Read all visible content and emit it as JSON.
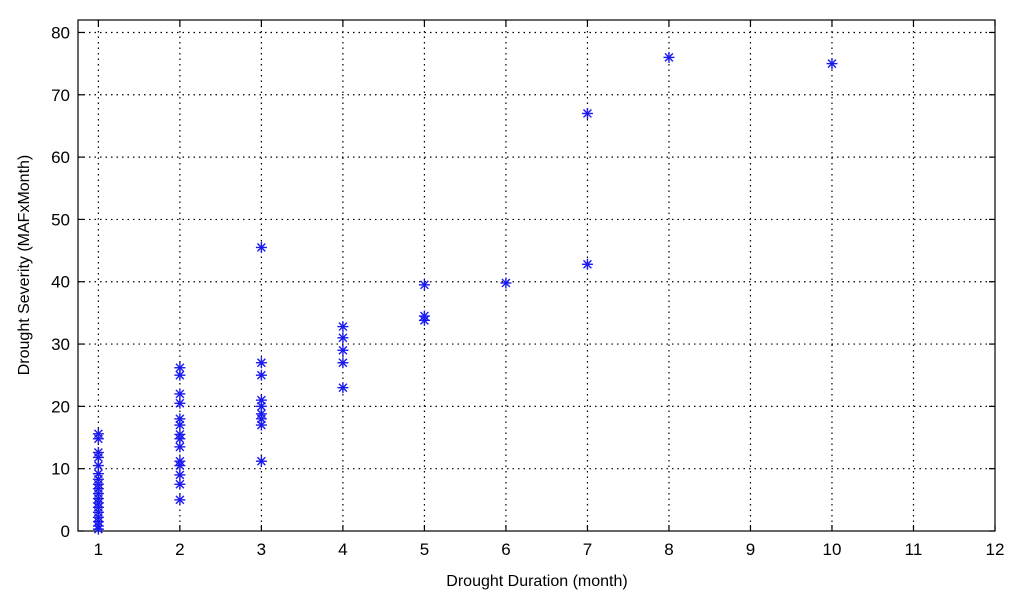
{
  "chart_data": {
    "type": "scatter",
    "title": "",
    "xlabel": "Drought Duration  (month)",
    "ylabel": "Drought Severity  (MAFxMonth)",
    "xlim": [
      0.75,
      12
    ],
    "ylim": [
      0,
      82
    ],
    "xticks": [
      1,
      2,
      3,
      4,
      5,
      6,
      7,
      8,
      9,
      10,
      11,
      12
    ],
    "yticks": [
      0,
      10,
      20,
      30,
      40,
      50,
      60,
      70,
      80
    ],
    "grid": true,
    "marker": "asterisk",
    "series_color": "#1a1aee",
    "points": [
      [
        1,
        0.3
      ],
      [
        1,
        0.8
      ],
      [
        1,
        1.5
      ],
      [
        1,
        2.2
      ],
      [
        1,
        3.0
      ],
      [
        1,
        3.8
      ],
      [
        1,
        4.5
      ],
      [
        1,
        5.2
      ],
      [
        1,
        6.0
      ],
      [
        1,
        6.8
      ],
      [
        1,
        7.5
      ],
      [
        1,
        8.3
      ],
      [
        1,
        9.2
      ],
      [
        1,
        10.5
      ],
      [
        1,
        11.8
      ],
      [
        1,
        12.6
      ],
      [
        1,
        14.8
      ],
      [
        1,
        15.6
      ],
      [
        2,
        5.0
      ],
      [
        2,
        7.5
      ],
      [
        2,
        9.0
      ],
      [
        2,
        10.5
      ],
      [
        2,
        11.2
      ],
      [
        2,
        13.5
      ],
      [
        2,
        14.8
      ],
      [
        2,
        15.5
      ],
      [
        2,
        17.0
      ],
      [
        2,
        18.0
      ],
      [
        2,
        20.5
      ],
      [
        2,
        22.0
      ],
      [
        2,
        25.0
      ],
      [
        2,
        26.2
      ],
      [
        3,
        11.2
      ],
      [
        3,
        17.0
      ],
      [
        3,
        18.0
      ],
      [
        3,
        18.8
      ],
      [
        3,
        20.0
      ],
      [
        3,
        21.0
      ],
      [
        3,
        25.0
      ],
      [
        3,
        27.0
      ],
      [
        3,
        45.5
      ],
      [
        4,
        23.0
      ],
      [
        4,
        27.0
      ],
      [
        4,
        29.0
      ],
      [
        4,
        31.0
      ],
      [
        4,
        32.8
      ],
      [
        5,
        33.8
      ],
      [
        5,
        34.5
      ],
      [
        5,
        39.5
      ],
      [
        6,
        39.8
      ],
      [
        7,
        42.8
      ],
      [
        7,
        67.0
      ],
      [
        8,
        76.0
      ],
      [
        10,
        75.0
      ]
    ]
  }
}
